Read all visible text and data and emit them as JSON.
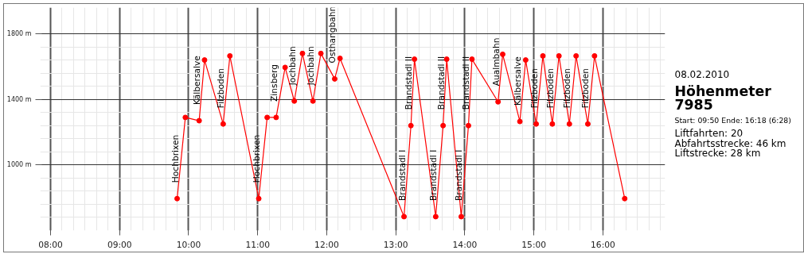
{
  "chart_data": {
    "type": "line",
    "title": "Höhenmeter\n7985",
    "subtitle": "08.02.2010",
    "x": [
      9.833,
      9.952,
      10.152,
      10.23,
      10.5,
      10.597,
      11.015,
      11.137,
      11.267,
      11.397,
      11.53,
      11.648,
      11.8,
      11.915,
      12.115,
      12.192,
      13.119,
      13.219,
      13.27,
      13.578,
      13.685,
      13.737,
      13.948,
      14.052,
      14.103,
      14.481,
      14.548,
      14.797,
      14.881,
      15.033,
      15.13,
      15.267,
      15.363,
      15.514,
      15.611,
      15.781,
      15.878,
      16.315
    ],
    "series": [
      {
        "color": "#ff0000",
        "values": [
          795,
          1290,
          1270,
          1640,
          1250,
          1665,
          795,
          1290,
          1290,
          1595,
          1390,
          1680,
          1390,
          1680,
          1525,
          1650,
          685,
          1240,
          1645,
          685,
          1240,
          1645,
          685,
          1240,
          1645,
          1385,
          1675,
          1265,
          1640,
          1250,
          1665,
          1250,
          1665,
          1250,
          1665,
          1250,
          1665,
          795
        ]
      }
    ],
    "marker": "circle",
    "line_style": "solid",
    "xlim": [
      7.85,
      16.9
    ],
    "ylim": [
      600,
      1960
    ],
    "xticks": [
      {
        "value": 8,
        "label": "08:00"
      },
      {
        "value": 8.1667,
        "label": null
      },
      {
        "value": 8.3333,
        "label": null
      },
      {
        "value": 8.5,
        "label": null
      },
      {
        "value": 8.6667,
        "label": null
      },
      {
        "value": 8.8333,
        "label": null
      },
      {
        "value": 9,
        "label": "09:00"
      },
      {
        "value": 9.1667,
        "label": null
      },
      {
        "value": 9.3333,
        "label": null
      },
      {
        "value": 9.5,
        "label": null
      },
      {
        "value": 9.6667,
        "label": null
      },
      {
        "value": 9.8333,
        "label": null
      },
      {
        "value": 10,
        "label": "10:00"
      },
      {
        "value": 10.1667,
        "label": null
      },
      {
        "value": 10.3333,
        "label": null
      },
      {
        "value": 10.5,
        "label": null
      },
      {
        "value": 10.6667,
        "label": null
      },
      {
        "value": 10.8333,
        "label": null
      },
      {
        "value": 11,
        "label": "11:00"
      },
      {
        "value": 11.1667,
        "label": null
      },
      {
        "value": 11.3333,
        "label": null
      },
      {
        "value": 11.5,
        "label": null
      },
      {
        "value": 11.6667,
        "label": null
      },
      {
        "value": 11.8333,
        "label": null
      },
      {
        "value": 12,
        "label": "12:00"
      },
      {
        "value": 12.1667,
        "label": null
      },
      {
        "value": 12.3333,
        "label": null
      },
      {
        "value": 12.5,
        "label": null
      },
      {
        "value": 12.6667,
        "label": null
      },
      {
        "value": 12.8333,
        "label": null
      },
      {
        "value": 13,
        "label": "13:00"
      },
      {
        "value": 13.1667,
        "label": null
      },
      {
        "value": 13.3333,
        "label": null
      },
      {
        "value": 13.5,
        "label": null
      },
      {
        "value": 13.6667,
        "label": null
      },
      {
        "value": 13.8333,
        "label": null
      },
      {
        "value": 14,
        "label": "14:00"
      },
      {
        "value": 14.1667,
        "label": null
      },
      {
        "value": 14.3333,
        "label": null
      },
      {
        "value": 14.5,
        "label": null
      },
      {
        "value": 14.6667,
        "label": null
      },
      {
        "value": 14.8333,
        "label": null
      },
      {
        "value": 15,
        "label": "15:00"
      },
      {
        "value": 15.1667,
        "label": null
      },
      {
        "value": 15.3333,
        "label": null
      },
      {
        "value": 15.5,
        "label": null
      },
      {
        "value": 15.6667,
        "label": null
      },
      {
        "value": 15.8333,
        "label": null
      },
      {
        "value": 16,
        "label": "16:00"
      },
      {
        "value": 16.1667,
        "label": null
      },
      {
        "value": 16.3333,
        "label": null
      },
      {
        "value": 16.5,
        "label": null
      },
      {
        "value": 16.6667,
        "label": null
      },
      {
        "value": 16.8333,
        "label": null
      }
    ],
    "yticks": [
      {
        "value": 680,
        "label": null
      },
      {
        "value": 760,
        "label": null
      },
      {
        "value": 840,
        "label": null
      },
      {
        "value": 920,
        "label": null
      },
      {
        "value": 1000,
        "label": "1000 m"
      },
      {
        "value": 1080,
        "label": null
      },
      {
        "value": 1160,
        "label": null
      },
      {
        "value": 1240,
        "label": null
      },
      {
        "value": 1320,
        "label": null
      },
      {
        "value": 1400,
        "label": "1400 m"
      },
      {
        "value": 1480,
        "label": null
      },
      {
        "value": 1560,
        "label": null
      },
      {
        "value": 1640,
        "label": null
      },
      {
        "value": 1720,
        "label": null
      },
      {
        "value": 1800,
        "label": "1800 m"
      }
    ],
    "grid": true,
    "annotations": [
      {
        "text": "Hochbrixen",
        "x": 9.833,
        "y": 795
      },
      {
        "text": "Kälbersalve",
        "x": 10.152,
        "y": 1270
      },
      {
        "text": "Filzboden",
        "x": 10.5,
        "y": 1250
      },
      {
        "text": "Hochbrixen",
        "x": 11.015,
        "y": 795
      },
      {
        "text": "Zinsberg",
        "x": 11.267,
        "y": 1290
      },
      {
        "text": "Jochbahn",
        "x": 11.53,
        "y": 1390
      },
      {
        "text": "Jochbahn",
        "x": 11.8,
        "y": 1390
      },
      {
        "text": "Osthangbahn",
        "x": 12.115,
        "y": 1525
      },
      {
        "text": "Brandstadl I",
        "x": 13.119,
        "y": 685
      },
      {
        "text": "Brandstadl II",
        "x": 13.219,
        "y": 1240
      },
      {
        "text": "Brandstadl I",
        "x": 13.578,
        "y": 685
      },
      {
        "text": "Brandstadl II",
        "x": 13.685,
        "y": 1240
      },
      {
        "text": "Brandstadl I",
        "x": 13.948,
        "y": 685
      },
      {
        "text": "Brandstadl II",
        "x": 14.052,
        "y": 1240
      },
      {
        "text": "Aualmbahn",
        "x": 14.481,
        "y": 1385
      },
      {
        "text": "Kälbersalve",
        "x": 14.797,
        "y": 1265
      },
      {
        "text": "Filzboden",
        "x": 15.033,
        "y": 1250
      },
      {
        "text": "Filzboden",
        "x": 15.267,
        "y": 1250
      },
      {
        "text": "Filzboden",
        "x": 15.514,
        "y": 1250
      },
      {
        "text": "Filzboden",
        "x": 15.781,
        "y": 1250
      },
      "Start: 09:50 Ende: 16:18 (6:28)",
      "Liftfahrten: 20",
      "Abfahrtsstrecke: 46 km",
      "Liftstrecke: 28 km"
    ]
  }
}
